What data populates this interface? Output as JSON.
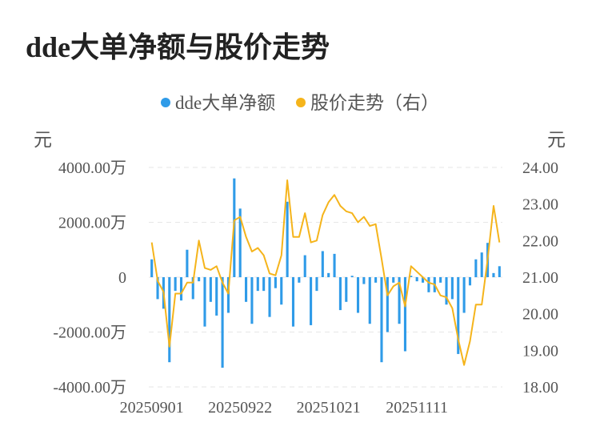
{
  "chart_data": {
    "type": "bar+line",
    "title": "dde大单净额与股价走势",
    "left_unit": "元",
    "right_unit": "元",
    "legend": [
      {
        "name": "dde大单净额",
        "color": "#2f9be8"
      },
      {
        "name": "股价走势（右）",
        "color": "#f5b41b"
      }
    ],
    "left_ticks": [
      "4000.00万",
      "2000.00万",
      "0",
      "-2000.00万",
      "-4000.00万"
    ],
    "right_ticks": [
      "24.00",
      "23.00",
      "22.00",
      "21.00",
      "20.00",
      "19.00",
      "18.00"
    ],
    "left_ylim": [
      -4000,
      4000
    ],
    "right_ylim": [
      18,
      24
    ],
    "x_labels": [
      {
        "label": "20250901",
        "index": 0
      },
      {
        "label": "20250922",
        "index": 15
      },
      {
        "label": "20251021",
        "index": 30
      },
      {
        "label": "20251111",
        "index": 45
      }
    ],
    "grid": "dashed horizontal",
    "series": [
      {
        "name": "dde大单净额",
        "kind": "bar",
        "axis": "left",
        "values": [
          650,
          -800,
          -1150,
          -3100,
          -500,
          -850,
          1000,
          -800,
          -150,
          -1800,
          -900,
          -1400,
          -3300,
          -1300,
          3600,
          2500,
          -900,
          -1700,
          -500,
          -500,
          -1450,
          -400,
          -1000,
          2750,
          -1800,
          -200,
          800,
          -1750,
          -500,
          950,
          150,
          850,
          -1200,
          -900,
          50,
          -1300,
          -250,
          -1700,
          -200,
          -3100,
          -2000,
          -200,
          -1700,
          -2700,
          50,
          -150,
          -200,
          -550,
          -550,
          -200,
          -1000,
          -800,
          -2800,
          -1300,
          -300,
          650,
          900,
          1250,
          150,
          400
        ],
        "color": "#2f9be8"
      },
      {
        "name": "股价走势（右）",
        "kind": "line",
        "axis": "right",
        "values": [
          21.95,
          20.9,
          20.6,
          19.1,
          20.55,
          20.55,
          20.85,
          20.85,
          22.0,
          21.25,
          21.2,
          21.3,
          20.85,
          20.55,
          22.55,
          22.65,
          22.1,
          21.7,
          21.8,
          21.6,
          21.1,
          21.05,
          21.6,
          23.65,
          22.1,
          22.1,
          22.75,
          21.95,
          22.0,
          22.7,
          23.05,
          23.25,
          22.95,
          22.8,
          22.75,
          22.5,
          22.65,
          22.4,
          22.45,
          21.5,
          20.5,
          20.75,
          20.85,
          20.2,
          21.3,
          21.15,
          21.0,
          20.85,
          20.8,
          20.5,
          20.45,
          20.15,
          19.3,
          18.6,
          19.25,
          20.25,
          20.25,
          21.5,
          22.95,
          21.95
        ],
        "color": "#f5b41b"
      }
    ]
  }
}
